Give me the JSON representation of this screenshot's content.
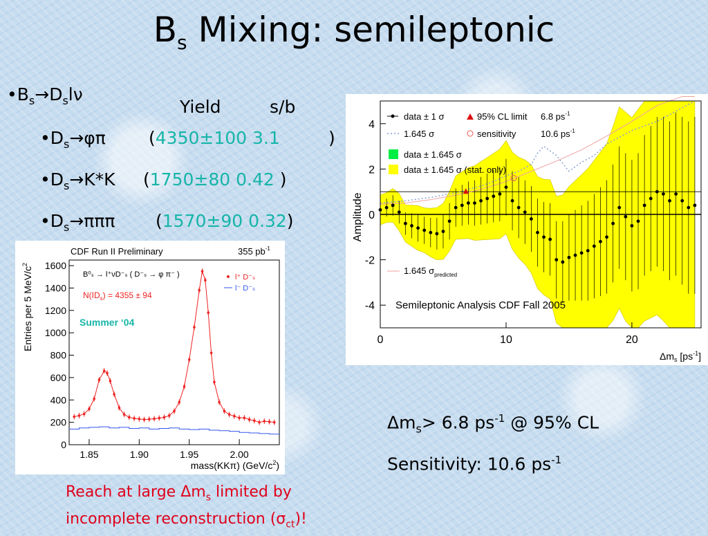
{
  "slide": {
    "title_main": "B",
    "title_sub": "s",
    "title_rest": " Mixing: semileptonic",
    "bullet1": {
      "prefix": "•B",
      "sub1": "s",
      "arrow": "→D",
      "sub2": "s",
      "rest": "lν"
    },
    "headers": {
      "yield": "Yield",
      "sb": "s/b"
    },
    "rows": [
      {
        "label_pre": "•D",
        "label_sub": "s",
        "label_post": "→φπ",
        "yield": "4350±100",
        "sb": "3.1"
      },
      {
        "label_pre": "•D",
        "label_sub": "s",
        "label_post": "→K*K",
        "yield": "1750±80",
        "sb": "0.42"
      },
      {
        "label_pre": "•D",
        "label_sub": "s",
        "label_post": "→πππ",
        "yield": "1570±90",
        "sb": "0.32"
      }
    ],
    "result_limit": {
      "pre": "Δm",
      "sub": "s",
      "mid": "> 6.8 ps",
      "sup": "-1",
      "post": " @ 95% CL"
    },
    "result_sens": {
      "pre": "Sensitivity: 10.6 ps",
      "sup": "-1"
    },
    "note": {
      "line1_pre": "Reach at large Δm",
      "line1_sub": "s",
      "line1_post": " limited by",
      "line2_pre": "incomplete reconstruction (σ",
      "line2_sub": "ct",
      "line2_post": ")!"
    }
  },
  "colors": {
    "accent_cyan": "#16b5a8",
    "note_red": "#e0001b",
    "band_yellow": "#ffff00",
    "band_green": "#00ee44"
  },
  "chart_data": [
    {
      "type": "line",
      "title": "CDF Run II Preliminary",
      "lumi": "355 pb",
      "lumi_sup": "-1",
      "xlabel": "mass(KKπ) (GeV/c",
      "xlabel_sup": "2",
      "xlabel_end": ")",
      "ylabel": "Entries per 5 MeV/c",
      "ylabel_sup": "2",
      "xlim": [
        1.83,
        2.04
      ],
      "ylim": [
        0,
        1650
      ],
      "x_ticks": [
        "1.85",
        "1.90",
        "1.95",
        "2.00"
      ],
      "x_tick_values": [
        1.85,
        1.9,
        1.95,
        2.0
      ],
      "y_ticks": [
        "0",
        "200",
        "400",
        "600",
        "800",
        "1000",
        "1200",
        "1400",
        "1600"
      ],
      "y_tick_values": [
        0,
        200,
        400,
        600,
        800,
        1000,
        1200,
        1400,
        1600
      ],
      "legend": {
        "decay": "B⁰ₛ → l⁺νD⁻ₛ ( D⁻ₛ → φ π⁻ )",
        "yield": "N(ID",
        "yield_sub": "s",
        "yield_rest": ") = 4355 ± 94",
        "rs": "l⁺ D⁻ₛ",
        "ws": "l⁻ D⁻ₛ"
      },
      "tag": "Summer ‘04",
      "series": [
        {
          "name": "l⁺ D⁻ₛ",
          "x": [
            1.835,
            1.84,
            1.845,
            1.85,
            1.855,
            1.86,
            1.865,
            1.868,
            1.871,
            1.875,
            1.88,
            1.885,
            1.89,
            1.895,
            1.9,
            1.905,
            1.91,
            1.915,
            1.92,
            1.925,
            1.93,
            1.935,
            1.94,
            1.945,
            1.95,
            1.955,
            1.96,
            1.963,
            1.966,
            1.969,
            1.972,
            1.975,
            1.98,
            1.985,
            1.99,
            1.995,
            2.0,
            2.005,
            2.01,
            2.015,
            2.02,
            2.025,
            2.03,
            2.035
          ],
          "y": [
            250,
            260,
            275,
            320,
            410,
            580,
            660,
            640,
            570,
            450,
            330,
            270,
            245,
            235,
            230,
            225,
            228,
            232,
            238,
            245,
            260,
            300,
            380,
            520,
            760,
            1050,
            1380,
            1550,
            1470,
            1180,
            820,
            560,
            380,
            300,
            270,
            255,
            240,
            240,
            225,
            215,
            200,
            210,
            205,
            200
          ]
        },
        {
          "name": "l⁻ D⁻ₛ",
          "x": [
            1.835,
            1.845,
            1.855,
            1.865,
            1.875,
            1.885,
            1.895,
            1.905,
            1.915,
            1.925,
            1.935,
            1.945,
            1.955,
            1.965,
            1.975,
            1.985,
            1.995,
            2.005,
            2.015,
            2.025,
            2.035
          ],
          "y": [
            140,
            150,
            155,
            160,
            150,
            155,
            145,
            150,
            140,
            145,
            150,
            140,
            135,
            140,
            130,
            125,
            120,
            110,
            105,
            100,
            95
          ]
        }
      ]
    },
    {
      "type": "line",
      "title": "Semileptonic Analysis CDF Fall 2005",
      "xlabel": "Δm",
      "xlabel_sub": "s",
      "xlabel_unit": " [ps",
      "xlabel_sup": "-1",
      "xlabel_end": "]",
      "ylabel": "Amplitude",
      "xlim": [
        0,
        25.5
      ],
      "ylim": [
        -5,
        5
      ],
      "x_ticks": [
        "0",
        "10",
        "20"
      ],
      "x_tick_values": [
        0,
        10,
        20
      ],
      "y_ticks": [
        "4",
        "2",
        "0",
        "-2",
        "-4"
      ],
      "y_tick_values": [
        4,
        2,
        0,
        -2,
        -4
      ],
      "legend": {
        "data1": "data ± 1 σ",
        "cl": "95% CL limit",
        "cl_value": "6.8 ps",
        "dash": "1.645 σ",
        "sens": "sensitivity",
        "sens_value": "10.6 ps",
        "green": "data ± 1.645 σ",
        "yellow": "data ± 1.645 σ (stat. only)",
        "pred": "1.645 σ",
        "pred_sub": "predicted",
        "sup": "-1"
      },
      "cl_limit": 6.8,
      "sensitivity": 10.6,
      "series": [
        {
          "name": "data ± 1 σ",
          "x": [
            0,
            0.5,
            1,
            1.5,
            2,
            2.5,
            3,
            3.5,
            4,
            4.5,
            5,
            5.5,
            6,
            6.5,
            7,
            7.5,
            8,
            8.5,
            9,
            9.5,
            10,
            10.5,
            11,
            11.5,
            12,
            12.5,
            13,
            13.5,
            14,
            14.5,
            15,
            15.5,
            16,
            16.5,
            17,
            17.5,
            18,
            18.5,
            19,
            19.5,
            20,
            20.5,
            21,
            21.5,
            22,
            22.5,
            23,
            23.5,
            24,
            24.5,
            25
          ],
          "y": [
            0.2,
            0.3,
            0.4,
            0.1,
            -0.4,
            -0.5,
            -0.6,
            -0.7,
            -0.8,
            -0.85,
            -0.75,
            -0.3,
            0.3,
            0.4,
            0.5,
            0.5,
            0.6,
            0.7,
            0.8,
            0.9,
            1.2,
            0.6,
            0.3,
            0.1,
            -0.2,
            -0.8,
            -1.0,
            -1.1,
            -2.0,
            -2.1,
            -1.9,
            -1.8,
            -1.7,
            -1.6,
            -1.4,
            -1.2,
            -1.0,
            -0.4,
            0.3,
            -0.1,
            -0.5,
            -0.3,
            0.4,
            0.7,
            1.0,
            0.9,
            0.6,
            0.9,
            0.6,
            0.3,
            0.4
          ],
          "err": [
            0.4,
            0.4,
            0.45,
            0.5,
            0.5,
            0.55,
            0.6,
            0.6,
            0.65,
            0.7,
            0.75,
            0.8,
            0.85,
            0.9,
            0.95,
            1.0,
            1.05,
            1.1,
            1.15,
            1.2,
            1.25,
            1.3,
            1.35,
            1.4,
            1.45,
            1.5,
            1.55,
            1.6,
            1.7,
            1.8,
            1.9,
            2.0,
            2.1,
            2.2,
            2.3,
            2.4,
            2.5,
            2.6,
            2.7,
            2.8,
            2.9,
            3.0,
            3.1,
            3.2,
            3.3,
            3.4,
            3.5,
            3.6,
            3.7,
            3.8,
            3.9
          ]
        },
        {
          "name": "1.645 σ",
          "x": [
            0,
            2,
            4,
            6,
            8,
            9,
            10,
            11,
            12,
            12.5,
            13,
            13.5,
            14,
            15,
            16,
            17,
            18,
            19,
            20,
            21,
            22,
            23,
            24,
            25
          ],
          "y": [
            0.5,
            0.6,
            0.75,
            0.95,
            1.25,
            1.45,
            1.7,
            1.9,
            2.2,
            2.7,
            3.0,
            2.8,
            2.6,
            1.9,
            2.3,
            2.6,
            3.1,
            3.4,
            3.7,
            3.9,
            4.1,
            4.4,
            4.7,
            5.0
          ]
        },
        {
          "name": "1.645 σ predicted",
          "x": [
            0,
            2,
            4,
            6,
            8,
            10,
            12,
            14,
            16,
            18,
            20,
            22,
            24,
            25
          ],
          "y": [
            0.45,
            0.5,
            0.65,
            0.85,
            1.1,
            1.45,
            1.9,
            2.35,
            2.85,
            3.45,
            4.1,
            4.8,
            5.5,
            5.9
          ]
        }
      ]
    }
  ]
}
